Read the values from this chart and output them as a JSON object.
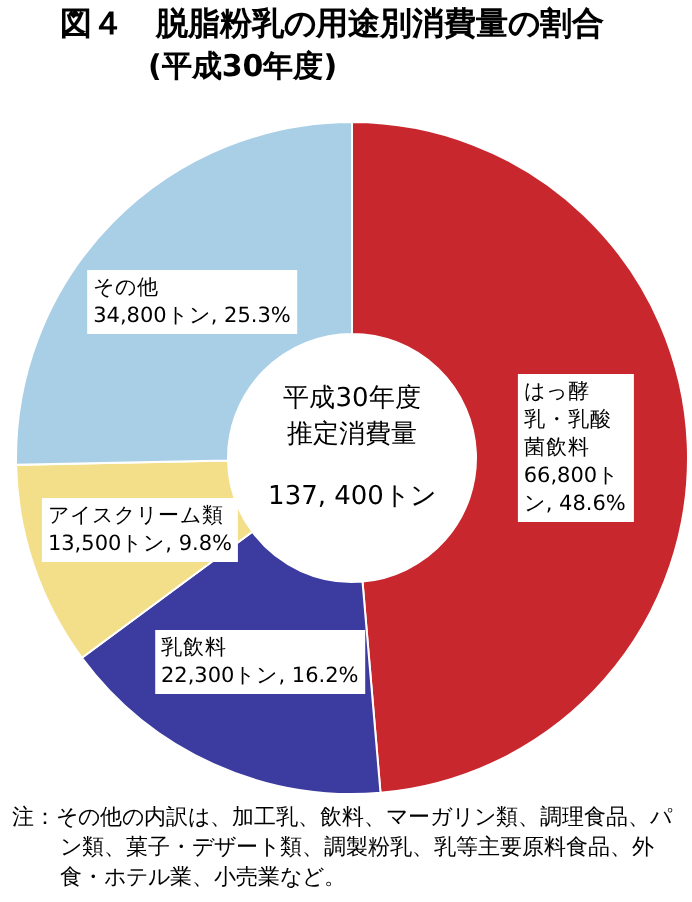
{
  "chart_data": {
    "type": "donut",
    "title": "図４　脱脂粉乳の用途別消費量の割合",
    "subtitle": "(平成30年度)",
    "categories": [
      "はっ酵乳・乳酸菌飲料",
      "乳飲料",
      "アイスクリーム類",
      "その他"
    ],
    "values": [
      48.6,
      16.2,
      9.8,
      25.3
    ],
    "value_labels": [
      "66,800トン, 48.6%",
      "22,300トン, 16.2%",
      "13,500トン, 9.8%",
      "34,800トン, 25.3%"
    ],
    "colors": [
      "#c8282d",
      "#3c3ca0",
      "#f3de8a",
      "#a9cfe6"
    ],
    "annotations": [
      "平成30年度",
      "推定消費量",
      "137, 400トン",
      "注：その他の内訳は、加工乳、飲料、マーガリン類、調理食品、パン類、菓子・デザート類、調製粉乳、乳等主要原料食品、外食・ホテル業、小売業など。"
    ]
  }
}
